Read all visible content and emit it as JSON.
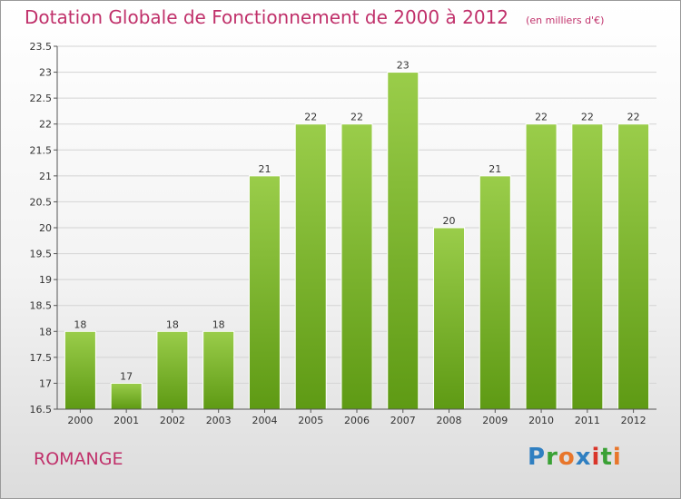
{
  "header": {
    "title": "Dotation Globale de Fonctionnement de 2000 à 2012",
    "subtitle": "(en milliers d'€)"
  },
  "footer": {
    "commune": "ROMANGE",
    "logo_text": "Proxiti"
  },
  "colors": {
    "title": "#c0306a",
    "bar_top": "#9acd4a",
    "bar_bottom": "#5e9a14"
  },
  "chart_data": {
    "type": "bar",
    "title": "Dotation Globale de Fonctionnement de 2000 à 2012",
    "subtitle": "(en milliers d'€)",
    "categories": [
      "2000",
      "2001",
      "2002",
      "2003",
      "2004",
      "2005",
      "2006",
      "2007",
      "2008",
      "2009",
      "2010",
      "2011",
      "2012"
    ],
    "values": [
      18,
      17,
      18,
      18,
      21,
      22,
      22,
      23,
      20,
      21,
      22,
      22,
      22
    ],
    "ylim": [
      16.5,
      23.5
    ],
    "yticks": [
      16.5,
      17,
      17.5,
      18,
      18.5,
      19,
      19.5,
      20,
      20.5,
      21,
      21.5,
      22,
      22.5,
      23,
      23.5
    ],
    "grid": true,
    "xlabel": "",
    "ylabel": ""
  }
}
